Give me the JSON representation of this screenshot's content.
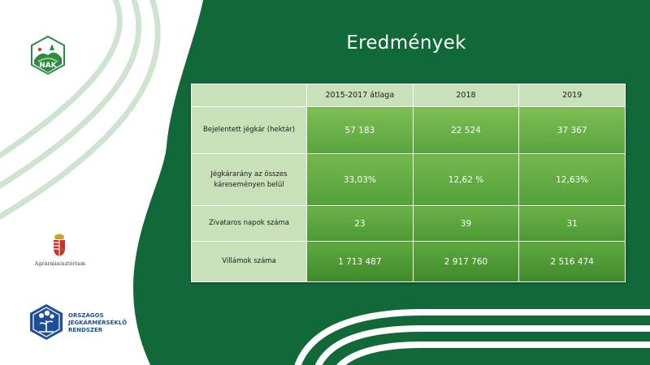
{
  "title": "Eredmények",
  "colors": {
    "background_green": "#11693a",
    "header_cell": "#c8e1b8",
    "data_cell": "#5aa33c",
    "badge_blue": "#1f4d96"
  },
  "table": {
    "headers": [
      "",
      "2015-2017 átlaga",
      "2018",
      "2019"
    ],
    "rows": [
      {
        "label": "Bejelentett jégkár (hektár)",
        "values": [
          "57 183",
          "22 524",
          "37 367"
        ]
      },
      {
        "label": "Jégkárarány az összes káreseményen belül",
        "values": [
          "33,03%",
          "12,62 %",
          "12,63%"
        ]
      },
      {
        "label": "Zivataros napok száma",
        "values": [
          "23",
          "39",
          "31"
        ]
      },
      {
        "label": "Villámok száma",
        "values": [
          "1 713 487",
          "2 917 760",
          "2 516 474"
        ]
      }
    ]
  },
  "logos": {
    "nak": "NAK",
    "ministry": "Agrárminisztérium",
    "ojr": [
      "ORSZÁGOS",
      "JÉGKÁRMÉRSÉKLŐ",
      "RENDSZER"
    ]
  },
  "icons": [
    "nak-logo-icon",
    "coat-of-arms-icon",
    "hail-system-badge-icon"
  ]
}
